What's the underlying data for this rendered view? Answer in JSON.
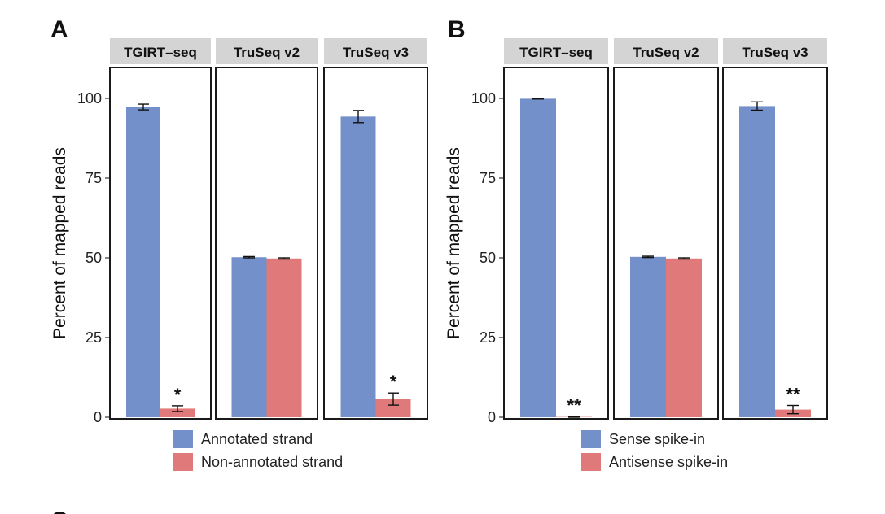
{
  "figure": {
    "cut_off_letter": "C"
  },
  "chart_data": [
    {
      "panel": "A",
      "type": "bar",
      "ylabel": "Percent of mapped reads",
      "xlabel": "",
      "ylim": [
        0,
        110
      ],
      "yticks": [
        0,
        25,
        50,
        75,
        100
      ],
      "grid": false,
      "facets": [
        "TGIRT–seq",
        "TruSeq v2",
        "TruSeq v3"
      ],
      "series": [
        {
          "name": "Annotated strand",
          "color": "#7490cb",
          "values": [
            97.3,
            50.2,
            94.3
          ],
          "errors": [
            0.9,
            0.2,
            1.9
          ]
        },
        {
          "name": "Non-annotated strand",
          "color": "#e07a7a",
          "values": [
            2.7,
            49.8,
            5.7
          ],
          "errors": [
            0.9,
            0.2,
            1.9
          ]
        }
      ],
      "annotations": [
        {
          "facet": 0,
          "series": 1,
          "text": "*"
        },
        {
          "facet": 2,
          "series": 1,
          "text": "*"
        }
      ],
      "legend_position": "bottom"
    },
    {
      "panel": "B",
      "type": "bar",
      "ylabel": "Percent of mapped reads",
      "xlabel": "",
      "ylim": [
        0,
        110
      ],
      "yticks": [
        0,
        25,
        50,
        75,
        100
      ],
      "grid": false,
      "facets": [
        "TGIRT–seq",
        "TruSeq v2",
        "TruSeq v3"
      ],
      "series": [
        {
          "name": "Sense spike-in",
          "color": "#7490cb",
          "values": [
            99.9,
            50.3,
            97.6
          ],
          "errors": [
            0.1,
            0.2,
            1.3
          ]
        },
        {
          "name": "Antisense spike-in",
          "color": "#e07a7a",
          "values": [
            0.1,
            49.8,
            2.4
          ],
          "errors": [
            0.1,
            0.2,
            1.3
          ]
        }
      ],
      "annotations": [
        {
          "facet": 0,
          "series": 1,
          "text": "**"
        },
        {
          "facet": 2,
          "series": 1,
          "text": "**"
        }
      ],
      "legend_position": "bottom"
    }
  ]
}
